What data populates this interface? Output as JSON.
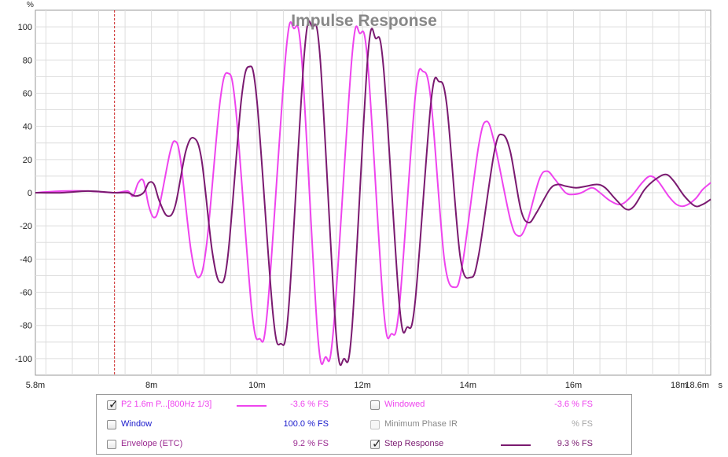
{
  "chart_data": {
    "type": "line",
    "title": "Impulse Response",
    "y_unit": "%",
    "x_unit": "s",
    "xlim": [
      5.8,
      18.6
    ],
    "ylim": [
      -110,
      110
    ],
    "x_ticks": [
      {
        "value": 5.8,
        "label": "5.8m"
      },
      {
        "value": 8,
        "label": "8m"
      },
      {
        "value": 10,
        "label": "10m"
      },
      {
        "value": 12,
        "label": "12m"
      },
      {
        "value": 14,
        "label": "14m"
      },
      {
        "value": 16,
        "label": "16m"
      },
      {
        "value": 18,
        "label": "18m"
      },
      {
        "value": 18.6,
        "label": "18.6m"
      }
    ],
    "y_ticks": [
      100,
      80,
      60,
      40,
      20,
      0,
      -20,
      -40,
      -60,
      -80,
      -100
    ],
    "marker_x": 7.3,
    "grid": true,
    "series": [
      {
        "name": "P2 1.6m P...[800Hz 1/3]",
        "color": "#ee44ee",
        "points": [
          [
            5.8,
            0
          ],
          [
            6.3,
            1
          ],
          [
            6.8,
            1
          ],
          [
            7.3,
            0
          ],
          [
            7.55,
            1
          ],
          [
            7.65,
            -2
          ],
          [
            7.75,
            6
          ],
          [
            7.85,
            7
          ],
          [
            7.95,
            -8
          ],
          [
            8.05,
            -15
          ],
          [
            8.15,
            -8
          ],
          [
            8.35,
            24
          ],
          [
            8.45,
            31
          ],
          [
            8.55,
            20
          ],
          [
            8.75,
            -35
          ],
          [
            8.9,
            -51
          ],
          [
            9.05,
            -30
          ],
          [
            9.3,
            55
          ],
          [
            9.45,
            72
          ],
          [
            9.6,
            50
          ],
          [
            9.9,
            -70
          ],
          [
            10.05,
            -88
          ],
          [
            10.2,
            -70
          ],
          [
            10.55,
            85
          ],
          [
            10.7,
            99
          ],
          [
            10.85,
            80
          ],
          [
            11.15,
            -85
          ],
          [
            11.3,
            -99
          ],
          [
            11.45,
            -82
          ],
          [
            11.8,
            82
          ],
          [
            11.95,
            96
          ],
          [
            12.1,
            78
          ],
          [
            12.4,
            -70
          ],
          [
            12.55,
            -85
          ],
          [
            12.7,
            -68
          ],
          [
            13.0,
            58
          ],
          [
            13.15,
            73
          ],
          [
            13.3,
            55
          ],
          [
            13.55,
            -40
          ],
          [
            13.75,
            -57
          ],
          [
            13.9,
            -42
          ],
          [
            14.2,
            28
          ],
          [
            14.35,
            43
          ],
          [
            14.5,
            30
          ],
          [
            14.8,
            -16
          ],
          [
            14.95,
            -26
          ],
          [
            15.1,
            -20
          ],
          [
            15.35,
            8
          ],
          [
            15.5,
            13
          ],
          [
            15.65,
            8
          ],
          [
            15.85,
            0
          ],
          [
            16.0,
            -1
          ],
          [
            16.15,
            0
          ],
          [
            16.35,
            3
          ],
          [
            16.5,
            0
          ],
          [
            16.7,
            -5
          ],
          [
            16.9,
            -7
          ],
          [
            17.1,
            -2
          ],
          [
            17.3,
            6
          ],
          [
            17.45,
            10
          ],
          [
            17.6,
            7
          ],
          [
            17.8,
            -2
          ],
          [
            17.95,
            -7
          ],
          [
            18.1,
            -8
          ],
          [
            18.3,
            -4
          ],
          [
            18.45,
            2
          ],
          [
            18.6,
            6
          ]
        ]
      },
      {
        "name": "Step Response",
        "color": "#7a1a70",
        "points": [
          [
            5.8,
            0
          ],
          [
            6.3,
            0
          ],
          [
            6.8,
            1
          ],
          [
            7.3,
            0
          ],
          [
            7.55,
            0
          ],
          [
            7.7,
            -2
          ],
          [
            7.85,
            0
          ],
          [
            7.95,
            6
          ],
          [
            8.05,
            5
          ],
          [
            8.15,
            -5
          ],
          [
            8.3,
            -14
          ],
          [
            8.45,
            -8
          ],
          [
            8.65,
            25
          ],
          [
            8.8,
            33
          ],
          [
            8.95,
            20
          ],
          [
            9.15,
            -35
          ],
          [
            9.3,
            -54
          ],
          [
            9.45,
            -38
          ],
          [
            9.7,
            55
          ],
          [
            9.85,
            76
          ],
          [
            10.0,
            55
          ],
          [
            10.3,
            -72
          ],
          [
            10.45,
            -91
          ],
          [
            10.6,
            -70
          ],
          [
            10.9,
            85
          ],
          [
            11.05,
            100
          ],
          [
            11.2,
            80
          ],
          [
            11.5,
            -85
          ],
          [
            11.65,
            -100
          ],
          [
            11.8,
            -82
          ],
          [
            12.1,
            82
          ],
          [
            12.25,
            93
          ],
          [
            12.4,
            75
          ],
          [
            12.7,
            -68
          ],
          [
            12.85,
            -81
          ],
          [
            13.0,
            -65
          ],
          [
            13.3,
            55
          ],
          [
            13.45,
            67
          ],
          [
            13.6,
            52
          ],
          [
            13.85,
            -38
          ],
          [
            14.05,
            -51
          ],
          [
            14.2,
            -38
          ],
          [
            14.5,
            25
          ],
          [
            14.65,
            35
          ],
          [
            14.8,
            25
          ],
          [
            15.0,
            -10
          ],
          [
            15.15,
            -18
          ],
          [
            15.3,
            -12
          ],
          [
            15.55,
            2
          ],
          [
            15.7,
            5
          ],
          [
            15.85,
            4
          ],
          [
            16.05,
            3
          ],
          [
            16.25,
            4
          ],
          [
            16.45,
            5
          ],
          [
            16.6,
            3
          ],
          [
            16.8,
            -4
          ],
          [
            17.0,
            -10
          ],
          [
            17.15,
            -8
          ],
          [
            17.35,
            2
          ],
          [
            17.55,
            8
          ],
          [
            17.75,
            11
          ],
          [
            17.9,
            7
          ],
          [
            18.1,
            -2
          ],
          [
            18.3,
            -8
          ],
          [
            18.45,
            -7
          ],
          [
            18.6,
            -4
          ]
        ]
      }
    ]
  },
  "legend": {
    "rows": [
      {
        "left": {
          "checked": true,
          "enabled": true,
          "label": "P2 1.6m P...[800Hz 1/3]",
          "color": "#ee44ee",
          "swatch": true,
          "value": "-3.6 % FS",
          "value_color": "#ee44ee"
        },
        "right": {
          "checked": false,
          "enabled": true,
          "label": "Windowed",
          "color": "#ee44ee",
          "swatch": false,
          "value": "-3.6 % FS",
          "value_color": "#ee44ee"
        }
      },
      {
        "left": {
          "checked": false,
          "enabled": true,
          "label": "Window",
          "color": "#1a1acc",
          "swatch": false,
          "value": "100.0 % FS",
          "value_color": "#1a1acc"
        },
        "right": {
          "checked": false,
          "enabled": false,
          "label": "Minimum Phase IR",
          "color": "#8a8a8a",
          "swatch": false,
          "value": "% FS",
          "value_color": "#a8a8a8"
        }
      },
      {
        "left": {
          "checked": false,
          "enabled": true,
          "label": "Envelope (ETC)",
          "color": "#9a2a90",
          "swatch": false,
          "value": "9.2 % FS",
          "value_color": "#9a2a90"
        },
        "right": {
          "checked": true,
          "enabled": true,
          "label": "Step Response",
          "color": "#7a1a70",
          "swatch": true,
          "value": "9.3 % FS",
          "value_color": "#7a1a70"
        }
      }
    ]
  }
}
